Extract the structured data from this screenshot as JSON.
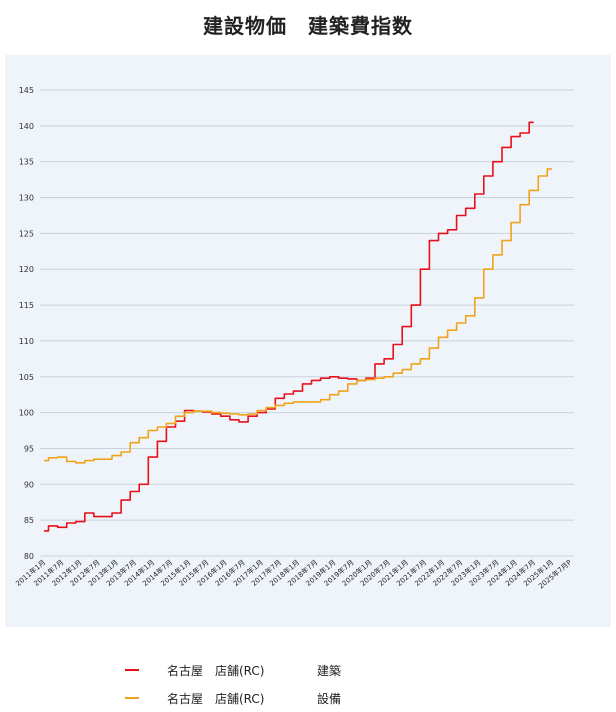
{
  "title": "建設物価　建築費指数",
  "chart_data": {
    "type": "line",
    "ylim": [
      80,
      145
    ],
    "yticks": [
      80,
      85,
      90,
      95,
      100,
      105,
      110,
      115,
      120,
      125,
      130,
      135,
      140,
      145
    ],
    "xtick_labels": [
      "2011年1月",
      "2011年7月",
      "2012年1月",
      "2012年7月",
      "2013年1月",
      "2013年7月",
      "2014年1月",
      "2014年7月",
      "2015年1月",
      "2015年7月",
      "2016年1月",
      "2016年7月",
      "2017年1月",
      "2017年7月",
      "2018年1月",
      "2018年7月",
      "2019年1月",
      "2019年7月",
      "2020年1月",
      "2020年7月",
      "2021年1月",
      "2021年7月",
      "2022年1月",
      "2022年7月",
      "2023年1月",
      "2023年7月",
      "2024年1月",
      "2024年7月",
      "2025年1月",
      "2025年7月P"
    ],
    "grid": true,
    "legend_position": "bottom",
    "series": [
      {
        "name": "名古屋　店舗(RC)　建築",
        "color": "#e8101b",
        "x": [
          0,
          0.5,
          1,
          1.5,
          2,
          2.5,
          3,
          3.5,
          4,
          4.5,
          5,
          5.5,
          6,
          6.5,
          7,
          7.5,
          8,
          8.5,
          9,
          9.5,
          10,
          10.5,
          11,
          11.5,
          12,
          12.5,
          13,
          13.5,
          14,
          14.5,
          15,
          15.5,
          16,
          16.5,
          17,
          17.5,
          18,
          18.5,
          19,
          19.5,
          20,
          20.5,
          21,
          21.5,
          22,
          22.5,
          23,
          23.5,
          24,
          24.5,
          25,
          25.5,
          26,
          26.5,
          27,
          27.5,
          28,
          28.5,
          29
        ],
        "values": [
          83.5,
          84.2,
          84.0,
          84.6,
          84.8,
          86.0,
          85.5,
          85.5,
          86.0,
          87.8,
          89.0,
          90.0,
          93.8,
          96.0,
          98.0,
          98.8,
          100.3,
          100.2,
          100.1,
          99.8,
          99.5,
          99.0,
          98.7,
          99.5,
          100.0,
          100.5,
          102.0,
          102.6,
          103.0,
          104.0,
          104.5,
          104.8,
          105.0,
          104.8,
          104.7,
          104.5,
          104.8,
          106.8,
          107.5,
          109.5,
          112.0,
          115.0,
          120.0,
          124.0,
          125.0,
          125.5,
          127.5,
          128.5,
          130.5,
          133.0,
          135.0,
          137.0,
          138.5,
          139.0,
          140.5,
          null,
          null,
          null,
          null
        ]
      },
      {
        "name": "名古屋　店舗(RC)　設備",
        "color": "#f0a31a",
        "x": [
          0,
          0.5,
          1,
          1.5,
          2,
          2.5,
          3,
          3.5,
          4,
          4.5,
          5,
          5.5,
          6,
          6.5,
          7,
          7.5,
          8,
          8.5,
          9,
          9.5,
          10,
          10.5,
          11,
          11.5,
          12,
          12.5,
          13,
          13.5,
          14,
          14.5,
          15,
          15.5,
          16,
          16.5,
          17,
          17.5,
          18,
          18.5,
          19,
          19.5,
          20,
          20.5,
          21,
          21.5,
          22,
          22.5,
          23,
          23.5,
          24,
          24.5,
          25,
          25.5,
          26,
          26.5,
          27,
          27.5,
          28,
          28.5,
          29
        ],
        "values": [
          93.3,
          93.7,
          93.8,
          93.2,
          93.0,
          93.3,
          93.5,
          93.5,
          94.0,
          94.5,
          95.8,
          96.5,
          97.5,
          98.0,
          98.5,
          99.5,
          100.0,
          100.2,
          100.2,
          100.0,
          99.9,
          99.8,
          99.7,
          99.8,
          100.3,
          100.7,
          101.0,
          101.3,
          101.5,
          101.5,
          101.5,
          101.8,
          102.5,
          103.0,
          104.0,
          104.5,
          104.6,
          104.8,
          105.0,
          105.5,
          106.0,
          106.8,
          107.5,
          109.0,
          110.5,
          111.5,
          112.5,
          113.5,
          116.0,
          120.0,
          122.0,
          124.0,
          126.5,
          129.0,
          131.0,
          133.0,
          134.0,
          null,
          null
        ]
      }
    ]
  },
  "legend": [
    {
      "name": "名古屋　店舗(RC)",
      "type": "建築",
      "color": "#e8101b"
    },
    {
      "name": "名古屋　店舗(RC)",
      "type": "設備",
      "color": "#f0a31a"
    }
  ]
}
